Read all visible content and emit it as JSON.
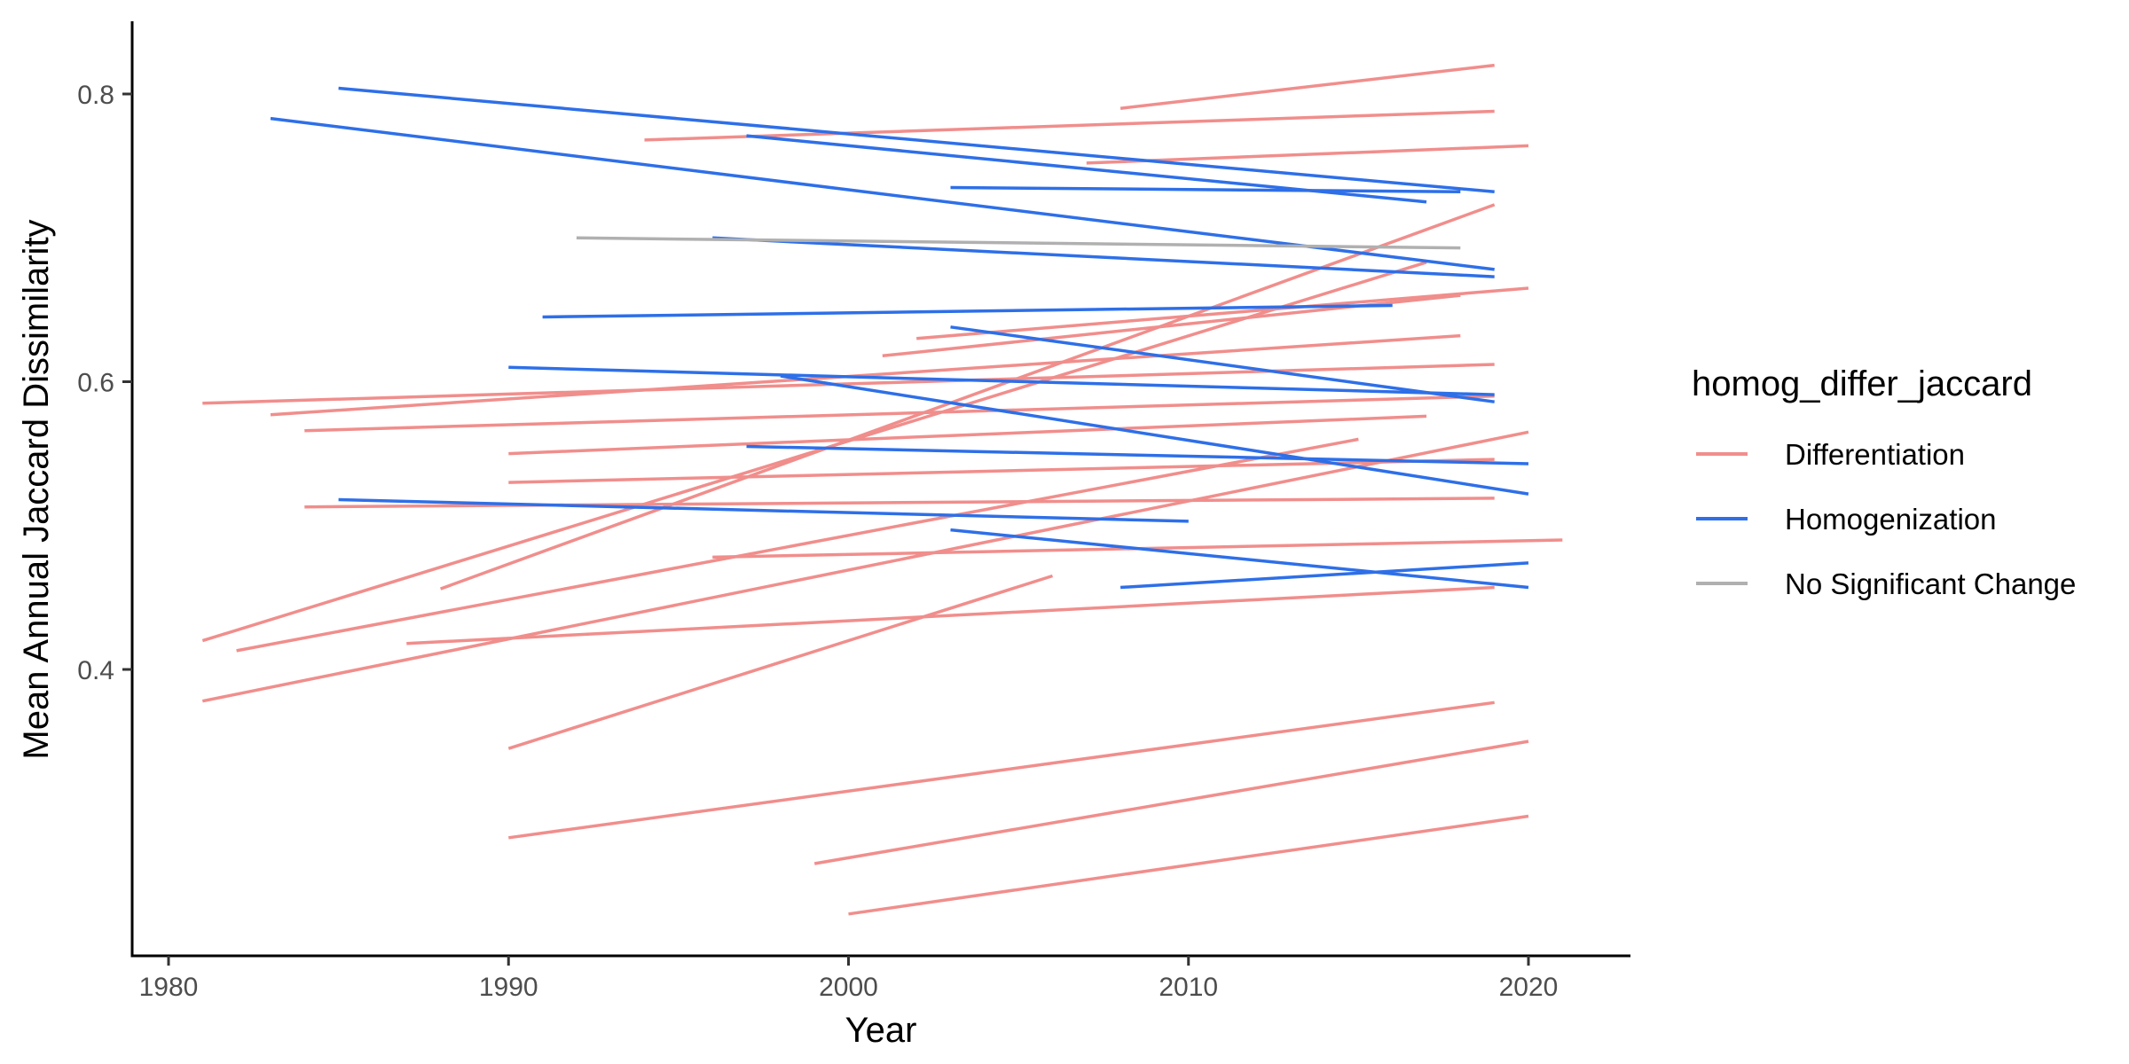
{
  "chart_data": {
    "type": "line",
    "title": "",
    "xlabel": "Year",
    "ylabel": "Mean Annual Jaccard Dissimilarity",
    "xlim": [
      1979,
      2023
    ],
    "ylim": [
      0.2,
      0.85
    ],
    "xticks": [
      1980,
      1990,
      2000,
      2010,
      2020
    ],
    "yticks": [
      0.4,
      0.6,
      0.8
    ],
    "ytick_labels": [
      "0.4",
      "0.6",
      "0.8"
    ],
    "grid": false,
    "legend_position": "right",
    "legend": {
      "title": "homog_differ_jaccard",
      "entries": [
        {
          "label": "Differentiation",
          "color": "#F08E8C"
        },
        {
          "label": "Homogenization",
          "color": "#2E6FE8"
        },
        {
          "label": "No Significant Change",
          "color": "#B0B0B0"
        }
      ]
    },
    "series": [
      {
        "group": "Differentiation",
        "x": [
          2008,
          2019
        ],
        "y": [
          0.79,
          0.82
        ]
      },
      {
        "group": "Differentiation",
        "x": [
          1994,
          2019
        ],
        "y": [
          0.768,
          0.788
        ]
      },
      {
        "group": "Differentiation",
        "x": [
          2007,
          2020
        ],
        "y": [
          0.752,
          0.764
        ]
      },
      {
        "group": "Differentiation",
        "x": [
          1988,
          2019
        ],
        "y": [
          0.456,
          0.723
        ]
      },
      {
        "group": "Differentiation",
        "x": [
          1981,
          2017
        ],
        "y": [
          0.42,
          0.683
        ]
      },
      {
        "group": "Differentiation",
        "x": [
          2002,
          2020
        ],
        "y": [
          0.63,
          0.665
        ]
      },
      {
        "group": "Differentiation",
        "x": [
          2001,
          2018
        ],
        "y": [
          0.618,
          0.66
        ]
      },
      {
        "group": "Differentiation",
        "x": [
          1983,
          2018
        ],
        "y": [
          0.577,
          0.632
        ]
      },
      {
        "group": "Differentiation",
        "x": [
          1981,
          2019
        ],
        "y": [
          0.585,
          0.612
        ]
      },
      {
        "group": "Differentiation",
        "x": [
          1984,
          2019
        ],
        "y": [
          0.566,
          0.59
        ]
      },
      {
        "group": "Differentiation",
        "x": [
          1990,
          2017
        ],
        "y": [
          0.55,
          0.576
        ]
      },
      {
        "group": "Differentiation",
        "x": [
          1982,
          2015
        ],
        "y": [
          0.413,
          0.56
        ]
      },
      {
        "group": "Differentiation",
        "x": [
          1990,
          2019
        ],
        "y": [
          0.53,
          0.546
        ]
      },
      {
        "group": "Differentiation",
        "x": [
          1981,
          2020
        ],
        "y": [
          0.378,
          0.565
        ]
      },
      {
        "group": "Differentiation",
        "x": [
          1984,
          2019
        ],
        "y": [
          0.513,
          0.519
        ]
      },
      {
        "group": "Differentiation",
        "x": [
          1990,
          2006
        ],
        "y": [
          0.345,
          0.465
        ]
      },
      {
        "group": "Differentiation",
        "x": [
          1996,
          2021
        ],
        "y": [
          0.478,
          0.49
        ]
      },
      {
        "group": "Differentiation",
        "x": [
          1987,
          2019
        ],
        "y": [
          0.418,
          0.457
        ]
      },
      {
        "group": "Differentiation",
        "x": [
          1990,
          2019
        ],
        "y": [
          0.283,
          0.377
        ]
      },
      {
        "group": "Differentiation",
        "x": [
          1999,
          2020
        ],
        "y": [
          0.265,
          0.35
        ]
      },
      {
        "group": "Differentiation",
        "x": [
          2000,
          2020
        ],
        "y": [
          0.23,
          0.298
        ]
      },
      {
        "group": "Homogenization",
        "x": [
          1985,
          2019
        ],
        "y": [
          0.804,
          0.732
        ]
      },
      {
        "group": "Homogenization",
        "x": [
          1983,
          2019
        ],
        "y": [
          0.783,
          0.678
        ]
      },
      {
        "group": "Homogenization",
        "x": [
          1997,
          2017
        ],
        "y": [
          0.771,
          0.725
        ]
      },
      {
        "group": "Homogenization",
        "x": [
          2003,
          2018
        ],
        "y": [
          0.735,
          0.732
        ]
      },
      {
        "group": "Homogenization",
        "x": [
          1996,
          2019
        ],
        "y": [
          0.7,
          0.673
        ]
      },
      {
        "group": "Homogenization",
        "x": [
          1991,
          2016
        ],
        "y": [
          0.645,
          0.653
        ]
      },
      {
        "group": "Homogenization",
        "x": [
          2003,
          2019
        ],
        "y": [
          0.638,
          0.586
        ]
      },
      {
        "group": "Homogenization",
        "x": [
          1990,
          2019
        ],
        "y": [
          0.61,
          0.591
        ]
      },
      {
        "group": "Homogenization",
        "x": [
          1998,
          2020
        ],
        "y": [
          0.604,
          0.522
        ]
      },
      {
        "group": "Homogenization",
        "x": [
          1997,
          2020
        ],
        "y": [
          0.555,
          0.543
        ]
      },
      {
        "group": "Homogenization",
        "x": [
          1985,
          2010
        ],
        "y": [
          0.518,
          0.503
        ]
      },
      {
        "group": "Homogenization",
        "x": [
          2003,
          2020
        ],
        "y": [
          0.497,
          0.457
        ]
      },
      {
        "group": "Homogenization",
        "x": [
          2008,
          2020
        ],
        "y": [
          0.457,
          0.474
        ]
      },
      {
        "group": "No Significant Change",
        "x": [
          1992,
          2018
        ],
        "y": [
          0.7,
          0.693
        ]
      }
    ]
  }
}
